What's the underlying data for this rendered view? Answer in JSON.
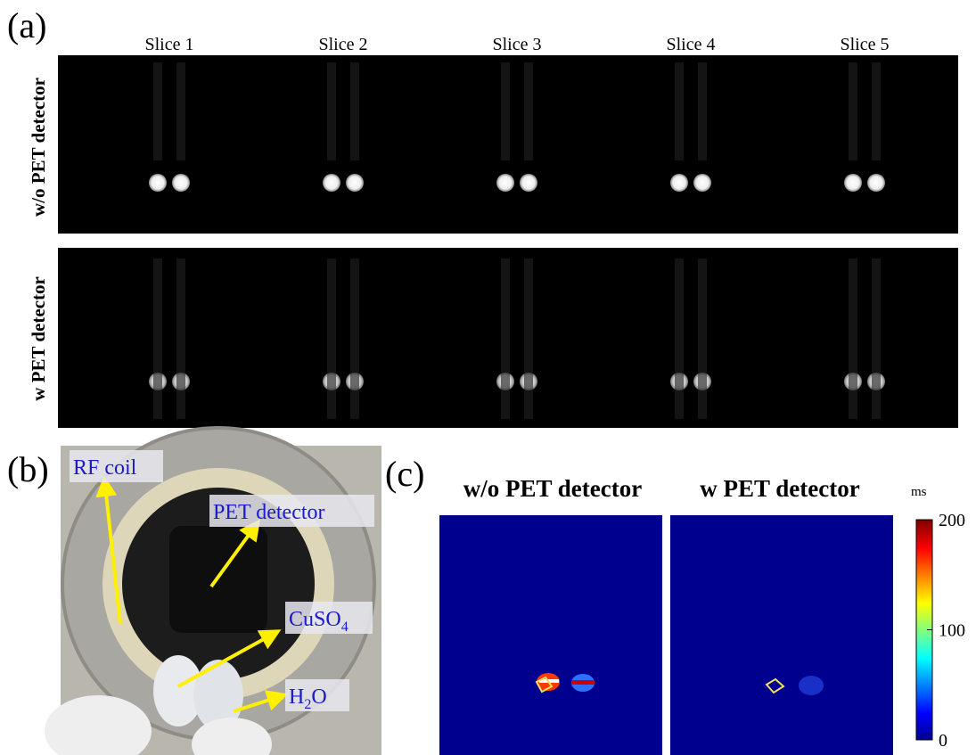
{
  "panel_a": {
    "label": "(a)",
    "slices": [
      "Slice 1",
      "Slice 2",
      "Slice 3",
      "Slice 4",
      "Slice 5"
    ],
    "rows": [
      "w/o PET detector",
      "w PET detector"
    ]
  },
  "panel_b": {
    "label": "(b)",
    "callouts": [
      {
        "text": "RF coil"
      },
      {
        "text": "PET detector"
      },
      {
        "text": "CuSO",
        "sub": "4"
      },
      {
        "text": "H",
        "sub": "2",
        "tail": "O"
      }
    ]
  },
  "panel_c": {
    "label": "(c)",
    "maps": [
      "w/o PET detector",
      "w PET detector"
    ],
    "colorbar": {
      "unit": "ms",
      "lim": [
        0,
        200
      ],
      "ticks": [
        0,
        100,
        200
      ]
    }
  }
}
